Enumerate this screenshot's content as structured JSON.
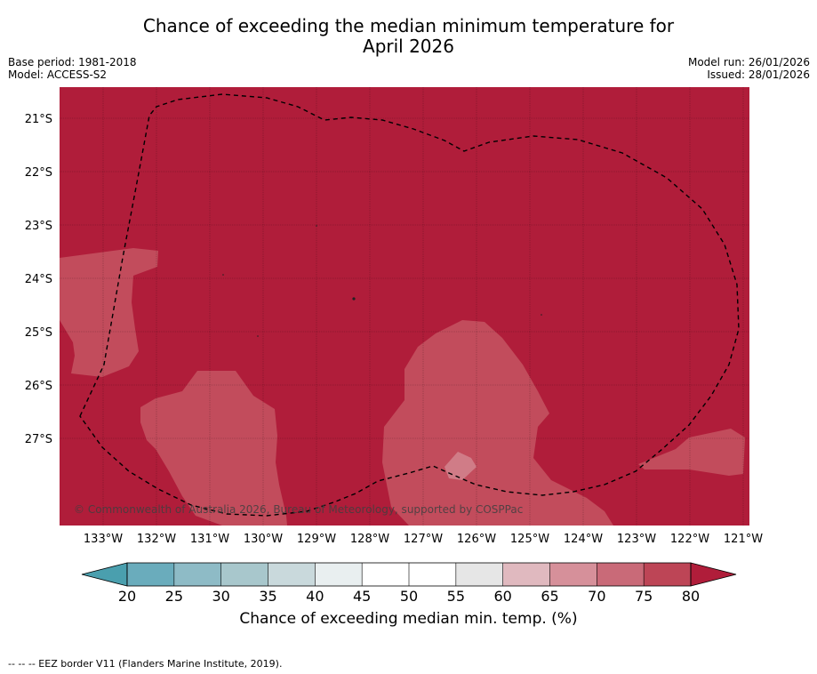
{
  "title_line1": "Chance of exceeding the median minimum temperature for",
  "title_line2": "April 2026",
  "base_period": "Base period: 1981-2018",
  "model": "Model: ACCESS-S2",
  "model_run": "Model run: 26/01/2026",
  "issued": "Issued: 28/01/2026",
  "copyright": "© Commonwealth of Australia 2026, Bureau of Meteorology, supported by COSPPac",
  "lat_labels": [
    "21°S",
    "22°S",
    "23°S",
    "24°S",
    "25°S",
    "26°S",
    "27°S"
  ],
  "lon_labels": [
    "133°W",
    "132°W",
    "131°W",
    "130°W",
    "129°W",
    "128°W",
    "127°W",
    "126°W",
    "125°W",
    "124°W",
    "123°W",
    "122°W",
    "121°W"
  ],
  "colorbar": {
    "ticks": [
      "20",
      "25",
      "30",
      "35",
      "40",
      "45",
      "50",
      "55",
      "60",
      "65",
      "70",
      "75",
      "80"
    ],
    "colors": [
      "#6aacbc",
      "#8ebbc6",
      "#a8c7cc",
      "#c9d9dc",
      "#e9eff0",
      "#ffffff",
      "#ffffff",
      "#e6e6e6",
      "#e0b9bf",
      "#d6909a",
      "#c96a78",
      "#bd4556"
    ],
    "under_color": "#4a9fae",
    "over_color": "#b01d3a",
    "label": "Chance of exceeding median min. temp. (%)"
  },
  "colors": {
    "high": "#b01d3a",
    "medium": "#c24c5c",
    "low": "#d07c87"
  },
  "footnote": "--  --  -- EEZ border V11 (Flanders Marine Institute, 2019)."
}
